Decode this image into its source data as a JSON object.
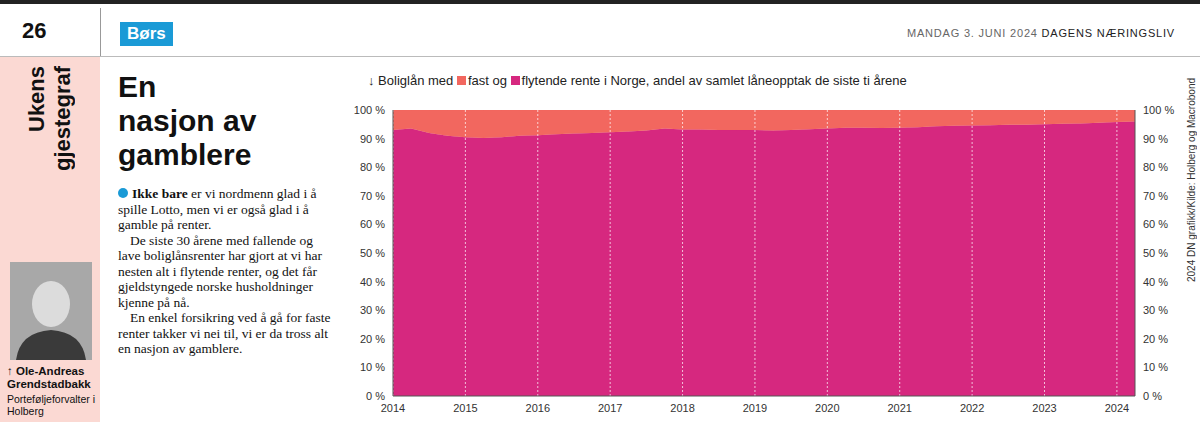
{
  "page": {
    "number": "26",
    "section": "Børs",
    "date": "MANDAG 3. JUNI 2024",
    "publication": "DAGENS NÆRINGSLIV",
    "column": "Ukens gjestegraf"
  },
  "article": {
    "headline": "En nasjon av gamblere",
    "lead": "Ikke bare",
    "paragraphs": [
      "er vi nordmenn glad i å spille Lotto, men vi er også glad i å gamble på renter.",
      "De siste 30 årene med fallende og lave boliglånsrenter har gjort at vi har nesten alt i flytende renter, og det får gjeldstyngede norske husholdninger kjenne på nå.",
      "En enkel forsikring ved å gå for faste renter takker vi nei til, vi er da tross alt en nasjon av gamblere."
    ],
    "author": "↑ Ole-Andreas Grendstadbakk",
    "author_title": "Porteføljeforvalter i Holberg"
  },
  "chart_data": {
    "type": "area",
    "title": "↓ Boliglån med fast og flytende rente i Norge, andel av samlet låneopptak de siste ti årene",
    "source": "2024 DN grafikk/Kilde: Holberg og Macrobond",
    "stacked": true,
    "grid": true,
    "x": [
      2014,
      2014.25,
      2014.5,
      2014.75,
      2015,
      2015.25,
      2015.5,
      2015.75,
      2016,
      2016.25,
      2016.5,
      2016.75,
      2017,
      2017.25,
      2017.5,
      2017.75,
      2018,
      2018.25,
      2018.5,
      2018.75,
      2019,
      2019.25,
      2019.5,
      2019.75,
      2020,
      2020.25,
      2020.5,
      2020.75,
      2021,
      2021.25,
      2021.5,
      2021.75,
      2022,
      2022.25,
      2022.5,
      2022.75,
      2023,
      2023.25,
      2023.5,
      2023.75,
      2024,
      2024.25
    ],
    "xlim": [
      2014,
      2024.25
    ],
    "xticks": [
      2014,
      2015,
      2016,
      2017,
      2018,
      2019,
      2020,
      2021,
      2022,
      2023,
      2024
    ],
    "ylim": [
      0,
      100
    ],
    "yticks": [
      {
        "value": 0,
        "label": "0 %"
      },
      {
        "value": 10,
        "label": "10 %"
      },
      {
        "value": 20,
        "label": "20 %"
      },
      {
        "value": 30,
        "label": "30 %"
      },
      {
        "value": 40,
        "label": "40 %"
      },
      {
        "value": 50,
        "label": "50 %"
      },
      {
        "value": 60,
        "label": "60 %"
      },
      {
        "value": 70,
        "label": "70 %"
      },
      {
        "value": 80,
        "label": "80 %"
      },
      {
        "value": 90,
        "label": "90 %"
      },
      {
        "value": 100,
        "label": "100 %"
      }
    ],
    "y2lim": [
      0,
      100
    ],
    "y2ticks": [
      {
        "value": 0,
        "label": "0 %"
      },
      {
        "value": 10,
        "label": "10 %"
      },
      {
        "value": 20,
        "label": "20 %"
      },
      {
        "value": 30,
        "label": "30 %"
      },
      {
        "value": 40,
        "label": "40 %"
      },
      {
        "value": 50,
        "label": "50 %"
      },
      {
        "value": 60,
        "label": "60 %"
      },
      {
        "value": 70,
        "label": "70 %"
      },
      {
        "value": 80,
        "label": "80 %"
      },
      {
        "value": 90,
        "label": "90 %"
      },
      {
        "value": 100,
        "label": "100 %"
      }
    ],
    "series": [
      {
        "name": "flytende rente",
        "color": "#d6287f",
        "values": [
          93,
          93.5,
          92,
          91,
          90.5,
          90.2,
          90.5,
          91,
          91.2,
          91.5,
          91.8,
          92,
          92.2,
          92.5,
          92.8,
          93.5,
          93.2,
          93.2,
          93,
          93,
          93,
          92.8,
          93,
          93.3,
          93.5,
          93.8,
          93.8,
          93.7,
          93.8,
          94,
          94.3,
          94.5,
          94.6,
          94.7,
          94.8,
          94.8,
          95,
          95.2,
          95.3,
          95.5,
          95.8,
          96
        ]
      },
      {
        "name": "fast",
        "color": "#f2675f",
        "values": [
          7,
          6.5,
          8,
          9,
          9.5,
          9.8,
          9.5,
          9,
          8.8,
          8.5,
          8.2,
          8,
          7.8,
          7.5,
          7.2,
          6.5,
          6.8,
          6.8,
          7,
          7,
          7,
          7.2,
          7,
          6.7,
          6.5,
          6.2,
          6.2,
          6.3,
          6.2,
          6,
          5.7,
          5.5,
          5.4,
          5.3,
          5.2,
          5.2,
          5,
          4.8,
          4.7,
          4.5,
          4.2,
          4
        ]
      }
    ]
  }
}
